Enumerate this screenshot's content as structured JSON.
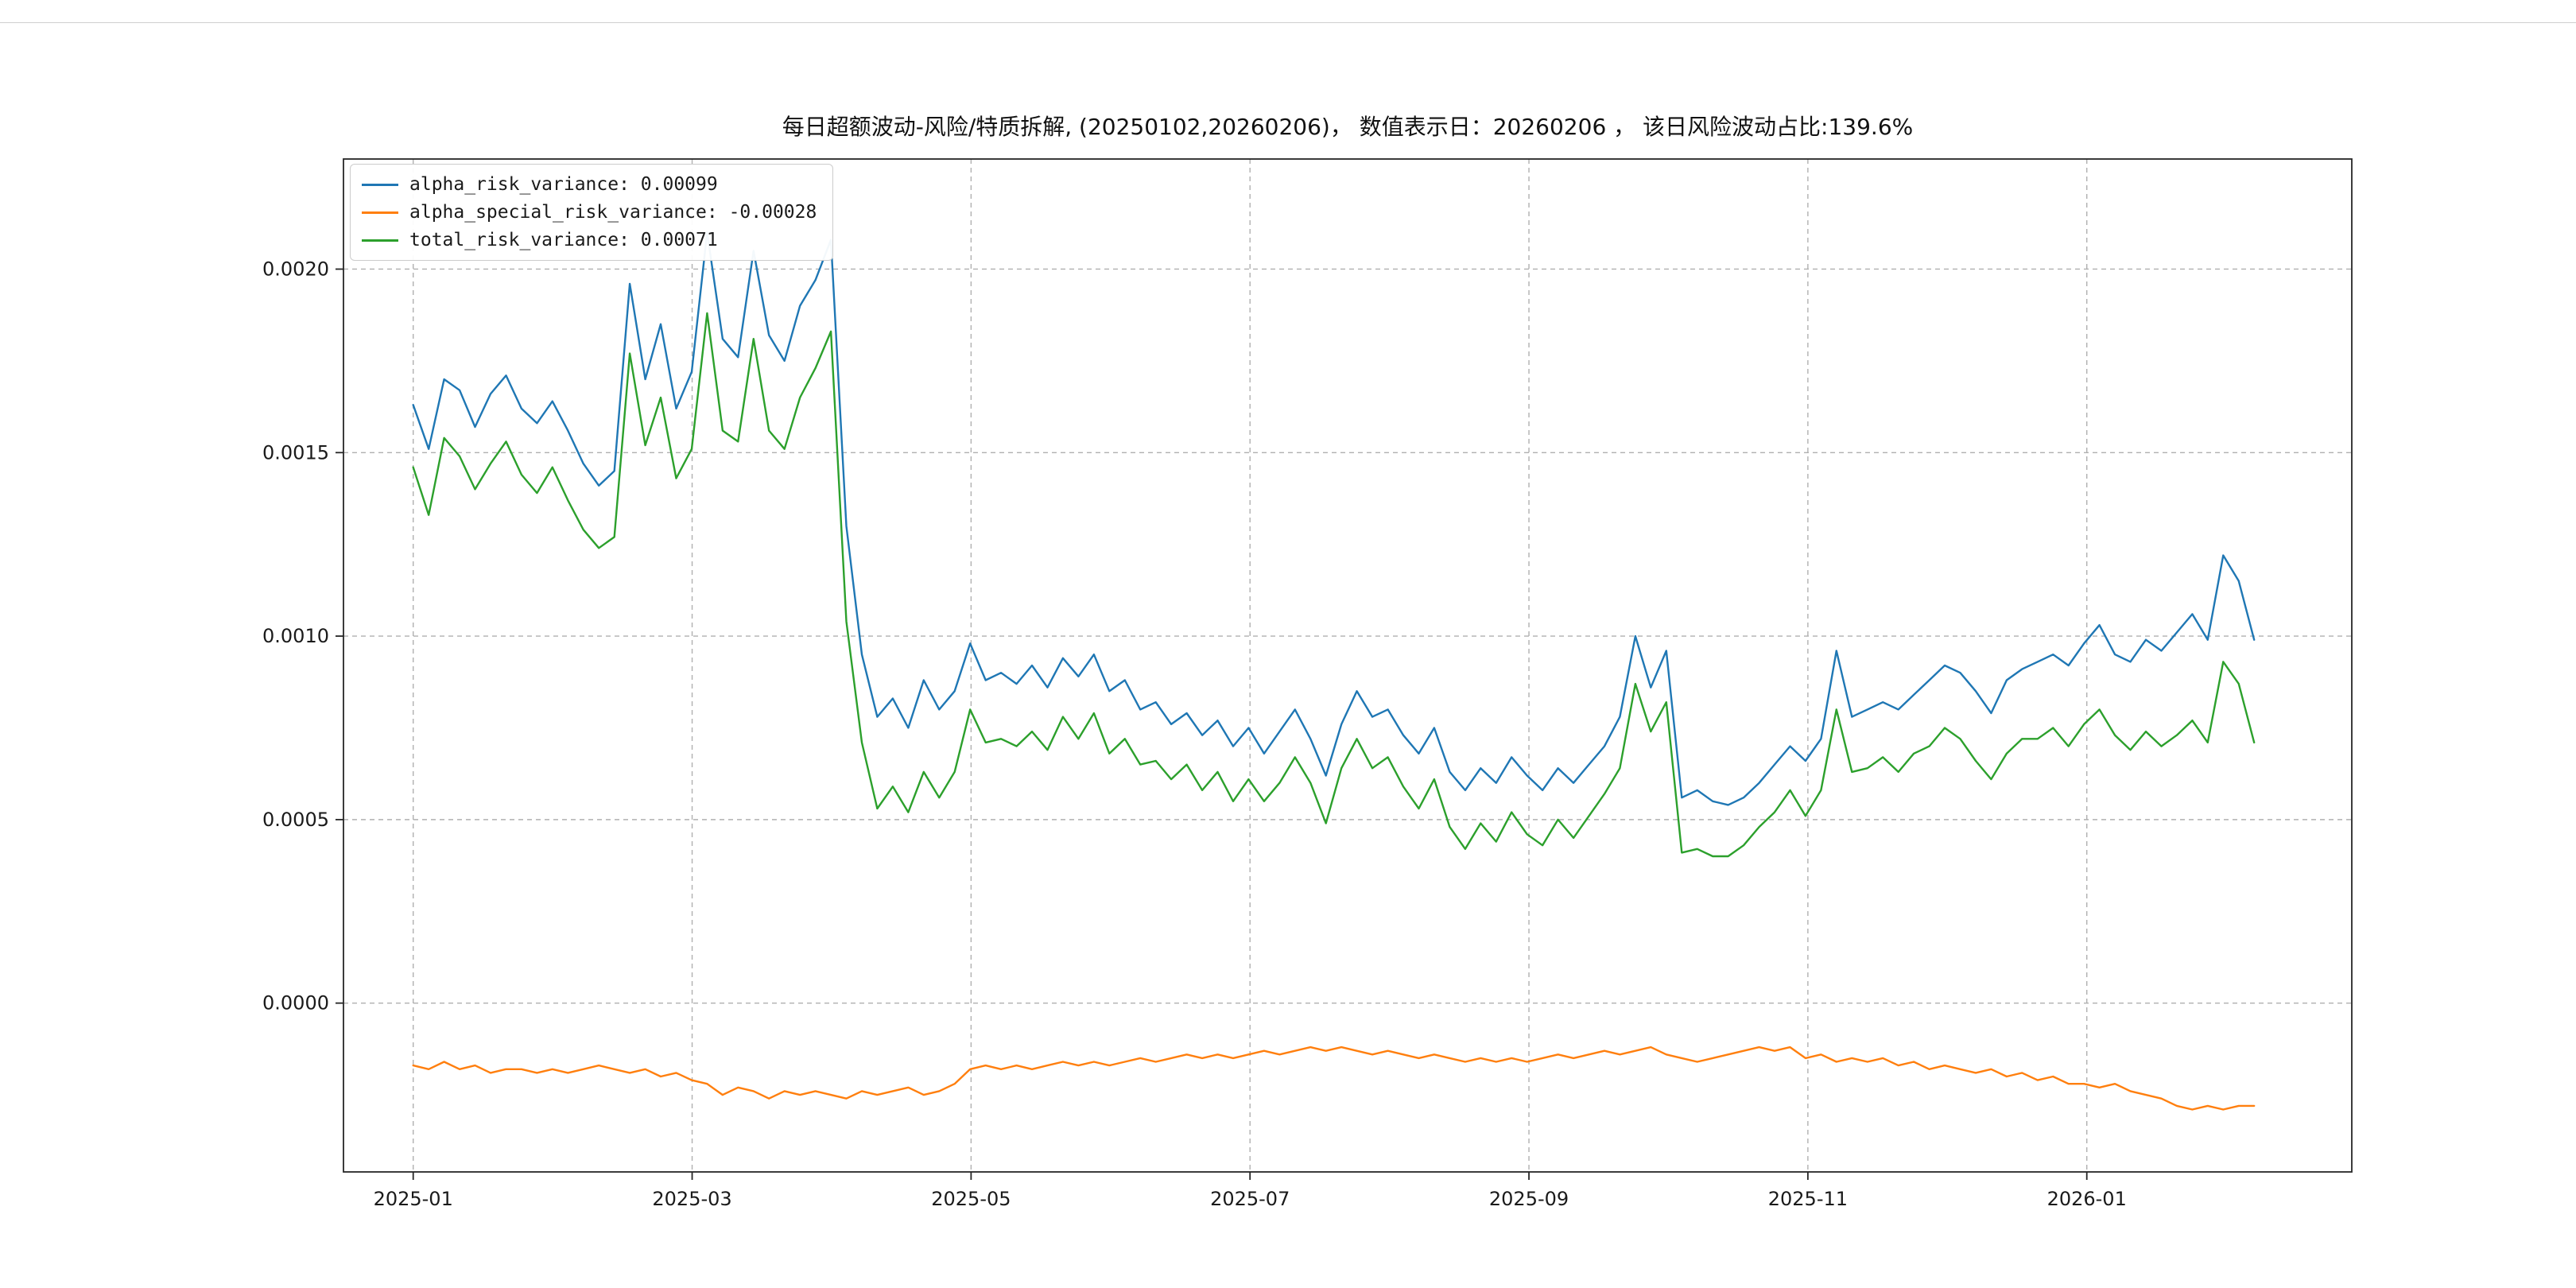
{
  "chart_data": {
    "type": "line",
    "title": "每日超额波动-风险/特质拆解, (20250102,20260206)，  数值表示日：20260206 ， 该日风险波动占比:139.6%",
    "grid": true,
    "legend_position": "upper-left",
    "xlim": [
      -0.5,
      13.9
    ],
    "ylim": [
      -0.00046,
      0.0023
    ],
    "x_unit": "months since 2025-01",
    "x_start": 0,
    "x_end": 13.2,
    "xticks": [
      {
        "label": "2025-01",
        "value": 0
      },
      {
        "label": "2025-03",
        "value": 2
      },
      {
        "label": "2025-05",
        "value": 4
      },
      {
        "label": "2025-07",
        "value": 6
      },
      {
        "label": "2025-09",
        "value": 8
      },
      {
        "label": "2025-11",
        "value": 10
      },
      {
        "label": "2026-01",
        "value": 12
      }
    ],
    "yticks": [
      {
        "label": "0.0020",
        "value": 0.002
      },
      {
        "label": "0.0015",
        "value": 0.0015
      },
      {
        "label": "0.0010",
        "value": 0.001
      },
      {
        "label": "0.0005",
        "value": 0.0005
      },
      {
        "label": "0.0000",
        "value": 0.0
      }
    ],
    "series": [
      {
        "name": "alpha_risk_variance",
        "legend": "alpha_risk_variance: 0.00099",
        "last_value": 0.00099,
        "color": "#1f77b4",
        "values": [
          0.00163,
          0.00151,
          0.0017,
          0.00167,
          0.00157,
          0.00166,
          0.00171,
          0.00162,
          0.00158,
          0.00164,
          0.00156,
          0.00147,
          0.00141,
          0.00145,
          0.00196,
          0.0017,
          0.00185,
          0.00162,
          0.00172,
          0.0021,
          0.00181,
          0.00176,
          0.00205,
          0.00182,
          0.00175,
          0.0019,
          0.00197,
          0.00208,
          0.0013,
          0.00095,
          0.00078,
          0.00083,
          0.00075,
          0.00088,
          0.0008,
          0.00085,
          0.00098,
          0.00088,
          0.0009,
          0.00087,
          0.00092,
          0.00086,
          0.00094,
          0.00089,
          0.00095,
          0.00085,
          0.00088,
          0.0008,
          0.00082,
          0.00076,
          0.00079,
          0.00073,
          0.00077,
          0.0007,
          0.00075,
          0.00068,
          0.00074,
          0.0008,
          0.00072,
          0.00062,
          0.00076,
          0.00085,
          0.00078,
          0.0008,
          0.00073,
          0.00068,
          0.00075,
          0.00063,
          0.00058,
          0.00064,
          0.0006,
          0.00067,
          0.00062,
          0.00058,
          0.00064,
          0.0006,
          0.00065,
          0.0007,
          0.00078,
          0.001,
          0.00086,
          0.00096,
          0.00056,
          0.00058,
          0.00055,
          0.00054,
          0.00056,
          0.0006,
          0.00065,
          0.0007,
          0.00066,
          0.00072,
          0.00096,
          0.00078,
          0.0008,
          0.00082,
          0.0008,
          0.00084,
          0.00088,
          0.00092,
          0.0009,
          0.00085,
          0.00079,
          0.00088,
          0.00091,
          0.00093,
          0.00095,
          0.00092,
          0.00098,
          0.00103,
          0.00095,
          0.00093,
          0.00099,
          0.00096,
          0.00101,
          0.00106,
          0.00099,
          0.00122,
          0.00115,
          0.00099
        ]
      },
      {
        "name": "alpha_special_risk_variance",
        "legend": "alpha_special_risk_variance: -0.00028",
        "last_value": -0.00028,
        "color": "#ff7f0e",
        "values": [
          -0.00017,
          -0.00018,
          -0.00016,
          -0.00018,
          -0.00017,
          -0.00019,
          -0.00018,
          -0.00018,
          -0.00019,
          -0.00018,
          -0.00019,
          -0.00018,
          -0.00017,
          -0.00018,
          -0.00019,
          -0.00018,
          -0.0002,
          -0.00019,
          -0.00021,
          -0.00022,
          -0.00025,
          -0.00023,
          -0.00024,
          -0.00026,
          -0.00024,
          -0.00025,
          -0.00024,
          -0.00025,
          -0.00026,
          -0.00024,
          -0.00025,
          -0.00024,
          -0.00023,
          -0.00025,
          -0.00024,
          -0.00022,
          -0.00018,
          -0.00017,
          -0.00018,
          -0.00017,
          -0.00018,
          -0.00017,
          -0.00016,
          -0.00017,
          -0.00016,
          -0.00017,
          -0.00016,
          -0.00015,
          -0.00016,
          -0.00015,
          -0.00014,
          -0.00015,
          -0.00014,
          -0.00015,
          -0.00014,
          -0.00013,
          -0.00014,
          -0.00013,
          -0.00012,
          -0.00013,
          -0.00012,
          -0.00013,
          -0.00014,
          -0.00013,
          -0.00014,
          -0.00015,
          -0.00014,
          -0.00015,
          -0.00016,
          -0.00015,
          -0.00016,
          -0.00015,
          -0.00016,
          -0.00015,
          -0.00014,
          -0.00015,
          -0.00014,
          -0.00013,
          -0.00014,
          -0.00013,
          -0.00012,
          -0.00014,
          -0.00015,
          -0.00016,
          -0.00015,
          -0.00014,
          -0.00013,
          -0.00012,
          -0.00013,
          -0.00012,
          -0.00015,
          -0.00014,
          -0.00016,
          -0.00015,
          -0.00016,
          -0.00015,
          -0.00017,
          -0.00016,
          -0.00018,
          -0.00017,
          -0.00018,
          -0.00019,
          -0.00018,
          -0.0002,
          -0.00019,
          -0.00021,
          -0.0002,
          -0.00022,
          -0.00022,
          -0.00023,
          -0.00022,
          -0.00024,
          -0.00025,
          -0.00026,
          -0.00028,
          -0.00029,
          -0.00028,
          -0.00029,
          -0.00028,
          -0.00028
        ]
      },
      {
        "name": "total_risk_variance",
        "legend": "total_risk_variance: 0.00071",
        "last_value": 0.00071,
        "color": "#2ca02c",
        "values": [
          0.00146,
          0.00133,
          0.00154,
          0.00149,
          0.0014,
          0.00147,
          0.00153,
          0.00144,
          0.00139,
          0.00146,
          0.00137,
          0.00129,
          0.00124,
          0.00127,
          0.00177,
          0.00152,
          0.00165,
          0.00143,
          0.00151,
          0.00188,
          0.00156,
          0.00153,
          0.00181,
          0.00156,
          0.00151,
          0.00165,
          0.00173,
          0.00183,
          0.00104,
          0.00071,
          0.00053,
          0.00059,
          0.00052,
          0.00063,
          0.00056,
          0.00063,
          0.0008,
          0.00071,
          0.00072,
          0.0007,
          0.00074,
          0.00069,
          0.00078,
          0.00072,
          0.00079,
          0.00068,
          0.00072,
          0.00065,
          0.00066,
          0.00061,
          0.00065,
          0.00058,
          0.00063,
          0.00055,
          0.00061,
          0.00055,
          0.0006,
          0.00067,
          0.0006,
          0.00049,
          0.00064,
          0.00072,
          0.00064,
          0.00067,
          0.00059,
          0.00053,
          0.00061,
          0.00048,
          0.00042,
          0.00049,
          0.00044,
          0.00052,
          0.00046,
          0.00043,
          0.0005,
          0.00045,
          0.00051,
          0.00057,
          0.00064,
          0.00087,
          0.00074,
          0.00082,
          0.00041,
          0.00042,
          0.0004,
          0.0004,
          0.00043,
          0.00048,
          0.00052,
          0.00058,
          0.00051,
          0.00058,
          0.0008,
          0.00063,
          0.00064,
          0.00067,
          0.00063,
          0.00068,
          0.0007,
          0.00075,
          0.00072,
          0.00066,
          0.00061,
          0.00068,
          0.00072,
          0.00072,
          0.00075,
          0.0007,
          0.00076,
          0.0008,
          0.00073,
          0.00069,
          0.00074,
          0.0007,
          0.00073,
          0.00077,
          0.00071,
          0.00093,
          0.00087,
          0.00071
        ]
      }
    ]
  }
}
